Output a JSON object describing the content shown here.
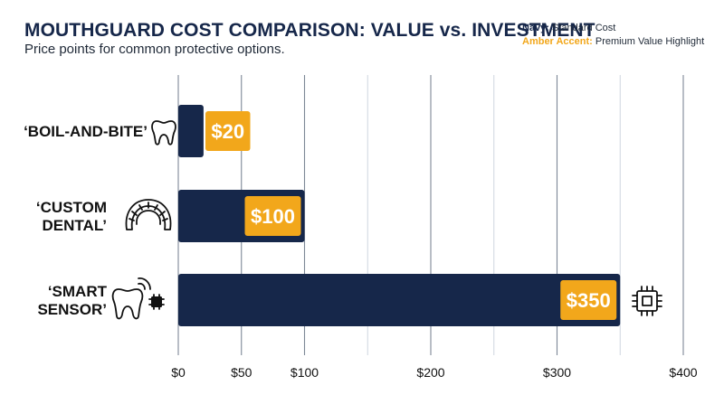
{
  "header": {
    "title": "MOUTHGUARD COST COMPARISON: VALUE vs. INVESTMENT",
    "subtitle": "Price points for common protective options."
  },
  "legend": {
    "navy_key": "Navy:",
    "navy_text": "Standard Cost",
    "amber_key": "Amber Accent:",
    "amber_text": "Premium Value Highlight"
  },
  "colors": {
    "navy": "#16274a",
    "amber": "#f2a71b",
    "grid": "#cfd6df",
    "text": "#111111"
  },
  "chart_data": {
    "type": "bar",
    "orientation": "horizontal",
    "title": "MOUTHGUARD COST COMPARISON: VALUE vs. INVESTMENT",
    "subtitle": "Price points for common protective options.",
    "categories": [
      {
        "lines": [
          "‘BOIL-AND-BITE’"
        ],
        "icon": "tooth-icon"
      },
      {
        "lines": [
          "‘CUSTOM",
          "DENTAL’"
        ],
        "icon": "dental-arch-icon"
      },
      {
        "lines": [
          "‘SMART",
          "SENSOR’"
        ],
        "icon": "smart-tooth-icon"
      }
    ],
    "values": [
      20,
      100,
      350
    ],
    "value_labels": [
      "$20",
      "$100",
      "$350"
    ],
    "xlim": [
      0,
      400
    ],
    "xticks": [
      0,
      50,
      100,
      200,
      300,
      400
    ],
    "xtick_labels": [
      "$0",
      "$50",
      "$100",
      "$200",
      "$300",
      "$400"
    ],
    "gridlines": [
      0,
      50,
      100,
      150,
      200,
      250,
      300,
      350,
      400
    ],
    "grid": true,
    "end_icon": "chip-icon"
  }
}
